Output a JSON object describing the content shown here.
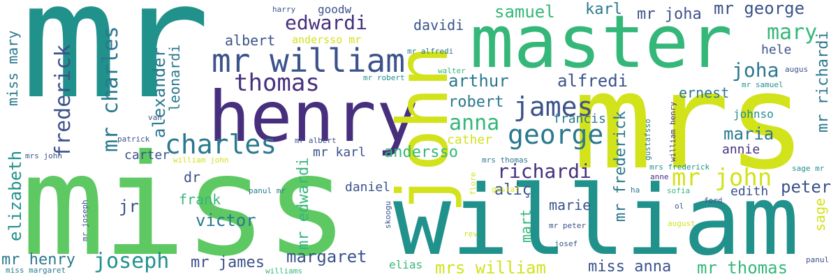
{
  "palette": {
    "teal": "#21918c",
    "green": "#5ec962",
    "yellow": "#d2e21b",
    "purple": "#472f7d",
    "blue": "#3b528b",
    "sea": "#2a788e",
    "mint": "#35b779",
    "lime": "#a0da39"
  },
  "words": [
    "mr",
    "miss",
    "mrs",
    "william",
    "master",
    "henry",
    "john",
    "mr william",
    "charles",
    "thomas",
    "james",
    "george",
    "edwardi",
    "mary",
    "frederick",
    "mr charles",
    "alexander",
    "leonardi",
    "miss mary",
    "elizabeth",
    "samuel",
    "karl",
    "mr joha",
    "mr george",
    "arthur",
    "alfredi",
    "joha",
    "hele",
    "ernest",
    "robert",
    "anna",
    "francis",
    "maria",
    "annie",
    "mr richardi",
    "mr frederick",
    "mr john",
    "richardi",
    "peter",
    "edith",
    "sage",
    "aliç",
    "marie",
    "mart",
    "victor",
    "jr",
    "frank",
    "dr",
    "mr edwardi",
    "daniel",
    "margaret",
    "joseph",
    "mr henry",
    "mr james",
    "mrs william",
    "miss anna",
    "mr thomas",
    "andersso",
    "cather",
    "carter",
    "mr karl",
    "albert",
    "davidi",
    "goodw",
    "harry",
    "andersso mr",
    "mr alfredi",
    "walter",
    "mr robert",
    "mr samuel",
    "augus",
    "johnso",
    "gustafsso",
    "william henry",
    "mrs frederick",
    "sage mr",
    "anne",
    "sofia",
    "ha",
    "ol",
    "ford",
    "panul",
    "gustaf",
    "flore",
    "skoogu",
    "panul mr",
    "mr joseph",
    "miss margaret",
    "williams",
    "elias",
    "rev",
    "josef",
    "mr peter",
    "august",
    "mrs thomas",
    "william john",
    "mr albert",
    "patrick",
    "van",
    "mrs john"
  ]
}
